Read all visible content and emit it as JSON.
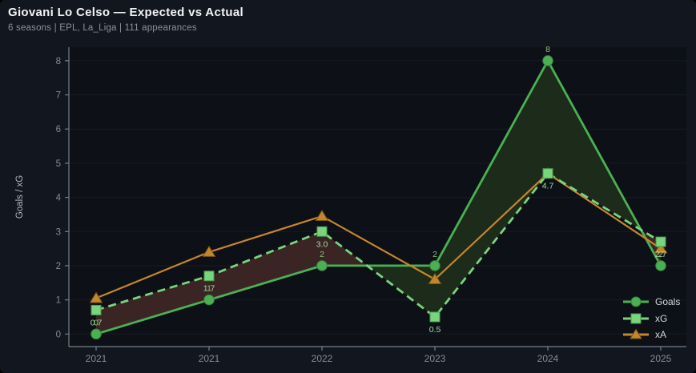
{
  "header": {
    "title": "Giovani Lo Celso — Expected vs Actual",
    "subtitle": "6 seasons | EPL, La_Liga | 111 appearances"
  },
  "chart_data": {
    "type": "line",
    "title": "Giovani Lo Celso — Expected vs Actual",
    "categories": [
      "2021",
      "2021",
      "2022",
      "2023",
      "2024",
      "2025"
    ],
    "series": [
      {
        "name": "Goals",
        "values": [
          0,
          1,
          2,
          2,
          8,
          2
        ],
        "labels": [
          "0",
          "1",
          "2",
          "2",
          "8",
          "2"
        ],
        "color": "#4bb054",
        "marker": "circle",
        "marker_edge": "#35803c",
        "line_style": "solid",
        "label_color": "#8cc26e",
        "label_side": "above"
      },
      {
        "name": "xG",
        "values": [
          0.7,
          1.7,
          3.0,
          0.5,
          4.7,
          2.7
        ],
        "labels": [
          "0.7",
          "1.7",
          "3.0",
          "0.5",
          "4.7",
          "2.7"
        ],
        "color": "#79d47e",
        "marker": "square",
        "marker_edge": "#4d9a52",
        "line_style": "dashed",
        "label_color": "#a3dba6",
        "label_side": "below"
      },
      {
        "name": "xA",
        "values": [
          1.05,
          2.4,
          3.45,
          1.6,
          4.7,
          2.5
        ],
        "labels": [],
        "color": "#c5862b",
        "marker": "triangle",
        "marker_edge": "#7a5415",
        "line_style": "solid",
        "label_color": "#c5862b",
        "label_side": "below"
      }
    ],
    "fill_between": {
      "upper_series": "Goals",
      "lower_series": "xG",
      "color_goals_above": "#1d2b1b",
      "color_xg_above": "#3a2424"
    },
    "xlabel": "",
    "ylabel": "Goals / xG",
    "ylim": [
      0,
      8
    ],
    "yticks": [
      0,
      1,
      2,
      3,
      4,
      5,
      6,
      7,
      8
    ],
    "grid": true,
    "legend_position": "lower right",
    "legend": [
      "Goals",
      "xG",
      "xA"
    ]
  },
  "colors": {
    "figure_bg": "#12161e",
    "plot_bg": "#0d1016",
    "grid": "#161b24",
    "spine": "#78818d",
    "tick_label": "#848c98",
    "axis_label": "#b0b8c3",
    "legend_text": "#cfd6dd",
    "title": "#f2f4f7",
    "subtitle": "#8b919c"
  }
}
